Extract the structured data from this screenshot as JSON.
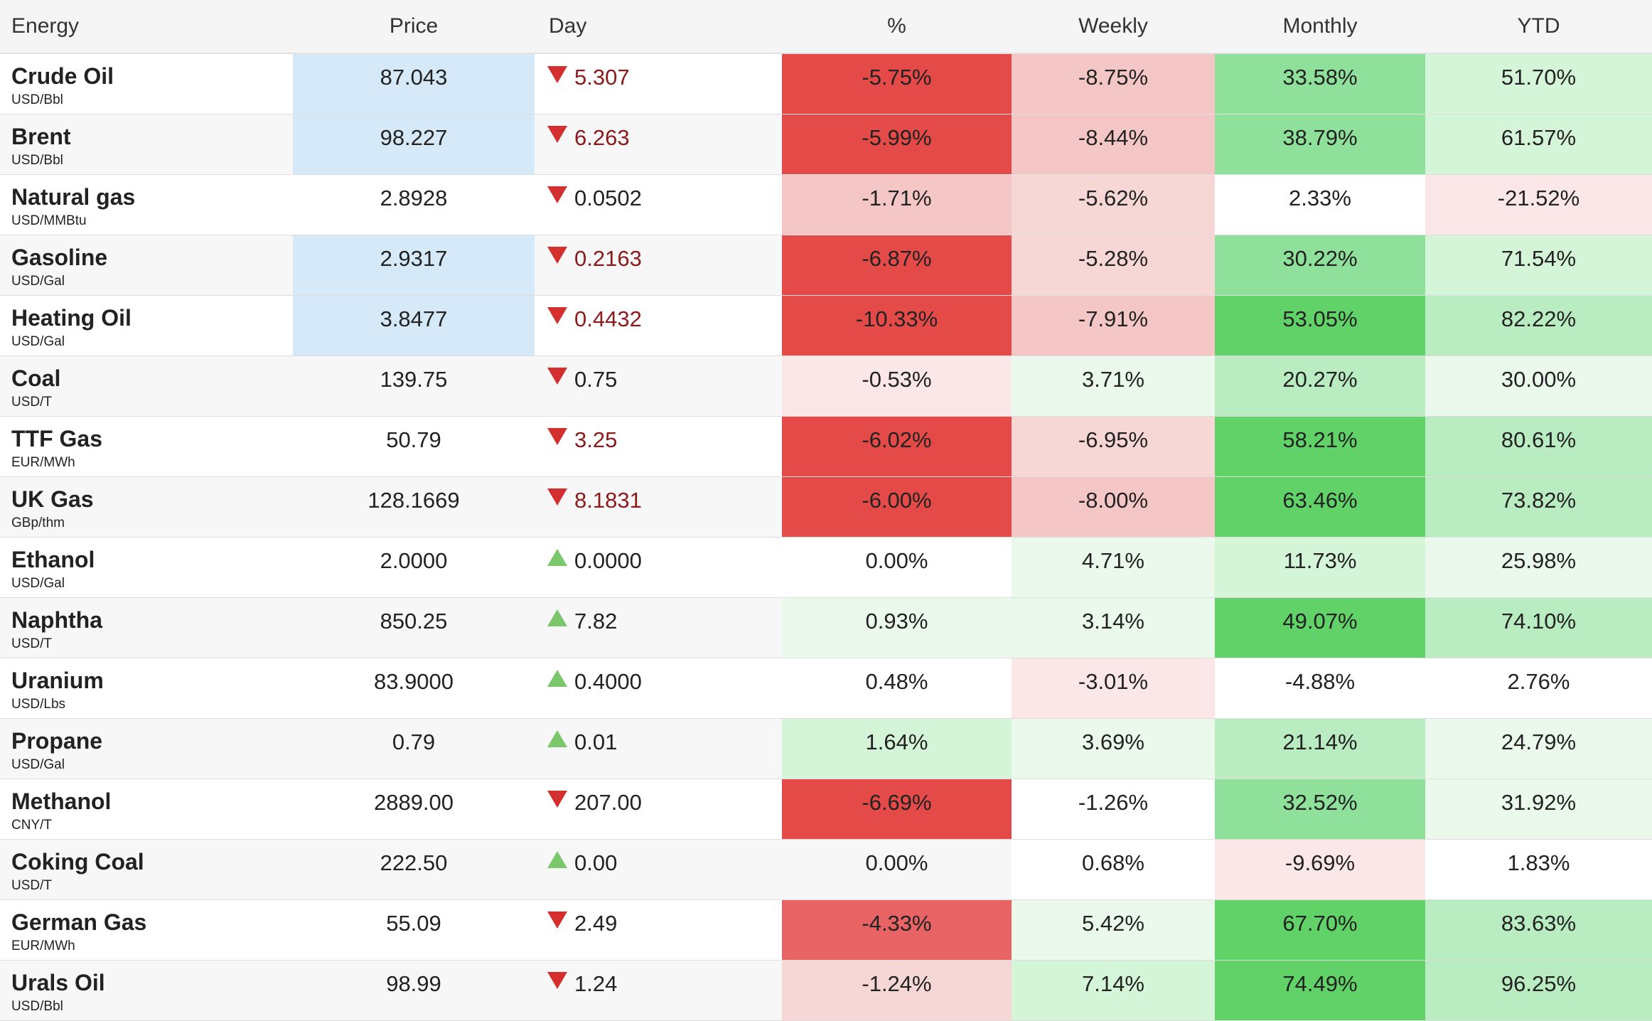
{
  "header": {
    "name": "Energy",
    "price": "Price",
    "day": "Day",
    "pct": "%",
    "weekly": "Weekly",
    "monthly": "Monthly",
    "ytd": "YTD"
  },
  "colors": {
    "highlight_blue": "#d6e9f8",
    "red_strong": "#e44b48",
    "red_medium": "#e86464",
    "red_light": "#f5c6c6",
    "red_lighter": "#f7d6d6",
    "red_faint": "#fbe7e7",
    "green_strong": "#61d268",
    "green_medium": "#8fe09a",
    "green_light": "#b9ecc0",
    "green_lighter": "#d5f5d9",
    "green_faint": "#ebf9ed",
    "arrow_down": "#d32f2f",
    "arrow_up": "#7cc66b"
  },
  "rows": [
    {
      "name": "Crude Oil",
      "unit": "USD/Bbl",
      "price": "87.043",
      "dir": "down",
      "day": "5.307",
      "day_red": true,
      "pct": "-5.75%",
      "weekly": "-8.75%",
      "monthly": "33.58%",
      "ytd": "51.70%",
      "price_bg": "#d6e9f8",
      "pct_bg": "#e44b48",
      "weekly_bg": "#f5c6c6",
      "monthly_bg": "#8fe09a",
      "ytd_bg": "#d5f5d9"
    },
    {
      "name": "Brent",
      "unit": "USD/Bbl",
      "price": "98.227",
      "dir": "down",
      "day": "6.263",
      "day_red": true,
      "pct": "-5.99%",
      "weekly": "-8.44%",
      "monthly": "38.79%",
      "ytd": "61.57%",
      "price_bg": "#d6e9f8",
      "pct_bg": "#e44b48",
      "weekly_bg": "#f5c6c6",
      "monthly_bg": "#8fe09a",
      "ytd_bg": "#d5f5d9"
    },
    {
      "name": "Natural gas",
      "unit": "USD/MMBtu",
      "price": "2.8928",
      "dir": "down",
      "day": "0.0502",
      "day_red": false,
      "pct": "-1.71%",
      "weekly": "-5.62%",
      "monthly": "2.33%",
      "ytd": "-21.52%",
      "price_bg": "",
      "pct_bg": "#f5c6c6",
      "weekly_bg": "#f7d6d6",
      "monthly_bg": "#ffffff",
      "ytd_bg": "#fbe7e7"
    },
    {
      "name": "Gasoline",
      "unit": "USD/Gal",
      "price": "2.9317",
      "dir": "down",
      "day": "0.2163",
      "day_red": true,
      "pct": "-6.87%",
      "weekly": "-5.28%",
      "monthly": "30.22%",
      "ytd": "71.54%",
      "price_bg": "#d6e9f8",
      "pct_bg": "#e44b48",
      "weekly_bg": "#f7d6d6",
      "monthly_bg": "#8fe09a",
      "ytd_bg": "#d5f5d9"
    },
    {
      "name": "Heating Oil",
      "unit": "USD/Gal",
      "price": "3.8477",
      "dir": "down",
      "day": "0.4432",
      "day_red": true,
      "pct": "-10.33%",
      "weekly": "-7.91%",
      "monthly": "53.05%",
      "ytd": "82.22%",
      "price_bg": "#d6e9f8",
      "pct_bg": "#e44b48",
      "weekly_bg": "#f5c6c6",
      "monthly_bg": "#61d268",
      "ytd_bg": "#b9ecc0"
    },
    {
      "name": "Coal",
      "unit": "USD/T",
      "price": "139.75",
      "dir": "down",
      "day": "0.75",
      "day_red": false,
      "pct": "-0.53%",
      "weekly": "3.71%",
      "monthly": "20.27%",
      "ytd": "30.00%",
      "price_bg": "",
      "pct_bg": "#fbe7e7",
      "weekly_bg": "#ebf9ed",
      "monthly_bg": "#b9ecc0",
      "ytd_bg": "#ebf9ed"
    },
    {
      "name": "TTF Gas",
      "unit": "EUR/MWh",
      "price": "50.79",
      "dir": "down",
      "day": "3.25",
      "day_red": true,
      "pct": "-6.02%",
      "weekly": "-6.95%",
      "monthly": "58.21%",
      "ytd": "80.61%",
      "price_bg": "",
      "pct_bg": "#e44b48",
      "weekly_bg": "#f7d6d6",
      "monthly_bg": "#61d268",
      "ytd_bg": "#b9ecc0"
    },
    {
      "name": "UK Gas",
      "unit": "GBp/thm",
      "price": "128.1669",
      "dir": "down",
      "day": "8.1831",
      "day_red": true,
      "pct": "-6.00%",
      "weekly": "-8.00%",
      "monthly": "63.46%",
      "ytd": "73.82%",
      "price_bg": "",
      "pct_bg": "#e44b48",
      "weekly_bg": "#f5c6c6",
      "monthly_bg": "#61d268",
      "ytd_bg": "#b9ecc0"
    },
    {
      "name": "Ethanol",
      "unit": "USD/Gal",
      "price": "2.0000",
      "dir": "up",
      "day": "0.0000",
      "day_red": false,
      "pct": "0.00%",
      "weekly": "4.71%",
      "monthly": "11.73%",
      "ytd": "25.98%",
      "price_bg": "",
      "pct_bg": "#ffffff",
      "weekly_bg": "#ebf9ed",
      "monthly_bg": "#d5f5d9",
      "ytd_bg": "#ebf9ed"
    },
    {
      "name": "Naphtha",
      "unit": "USD/T",
      "price": "850.25",
      "dir": "up",
      "day": "7.82",
      "day_red": false,
      "pct": "0.93%",
      "weekly": "3.14%",
      "monthly": "49.07%",
      "ytd": "74.10%",
      "price_bg": "",
      "pct_bg": "#ebf9ed",
      "weekly_bg": "#ebf9ed",
      "monthly_bg": "#61d268",
      "ytd_bg": "#b9ecc0"
    },
    {
      "name": "Uranium",
      "unit": "USD/Lbs",
      "price": "83.9000",
      "dir": "up",
      "day": "0.4000",
      "day_red": false,
      "pct": "0.48%",
      "weekly": "-3.01%",
      "monthly": "-4.88%",
      "ytd": "2.76%",
      "price_bg": "",
      "pct_bg": "#ffffff",
      "weekly_bg": "#fbe7e7",
      "monthly_bg": "#ffffff",
      "ytd_bg": "#ffffff"
    },
    {
      "name": "Propane",
      "unit": "USD/Gal",
      "price": "0.79",
      "dir": "up",
      "day": "0.01",
      "day_red": false,
      "pct": "1.64%",
      "weekly": "3.69%",
      "monthly": "21.14%",
      "ytd": "24.79%",
      "price_bg": "",
      "pct_bg": "#d5f5d9",
      "weekly_bg": "#ebf9ed",
      "monthly_bg": "#b9ecc0",
      "ytd_bg": "#ebf9ed"
    },
    {
      "name": "Methanol",
      "unit": "CNY/T",
      "price": "2889.00",
      "dir": "down",
      "day": "207.00",
      "day_red": false,
      "pct": "-6.69%",
      "weekly": "-1.26%",
      "monthly": "32.52%",
      "ytd": "31.92%",
      "price_bg": "",
      "pct_bg": "#e44b48",
      "weekly_bg": "#ffffff",
      "monthly_bg": "#8fe09a",
      "ytd_bg": "#ebf9ed"
    },
    {
      "name": "Coking Coal",
      "unit": "USD/T",
      "price": "222.50",
      "dir": "up",
      "day": "0.00",
      "day_red": false,
      "pct": "0.00%",
      "weekly": "0.68%",
      "monthly": "-9.69%",
      "ytd": "1.83%",
      "price_bg": "",
      "pct_bg": "",
      "weekly_bg": "#ffffff",
      "monthly_bg": "#fbe7e7",
      "ytd_bg": "#ffffff"
    },
    {
      "name": "German Gas",
      "unit": "EUR/MWh",
      "price": "55.09",
      "dir": "down",
      "day": "2.49",
      "day_red": false,
      "pct": "-4.33%",
      "weekly": "5.42%",
      "monthly": "67.70%",
      "ytd": "83.63%",
      "price_bg": "",
      "pct_bg": "#e86464",
      "weekly_bg": "#ebf9ed",
      "monthly_bg": "#61d268",
      "ytd_bg": "#b9ecc0"
    },
    {
      "name": "Urals Oil",
      "unit": "USD/Bbl",
      "price": "98.99",
      "dir": "down",
      "day": "1.24",
      "day_red": false,
      "pct": "-1.24%",
      "weekly": "7.14%",
      "monthly": "74.49%",
      "ytd": "96.25%",
      "price_bg": "",
      "pct_bg": "#f7d6d6",
      "weekly_bg": "#d5f5d9",
      "monthly_bg": "#61d268",
      "ytd_bg": "#b9ecc0"
    }
  ]
}
